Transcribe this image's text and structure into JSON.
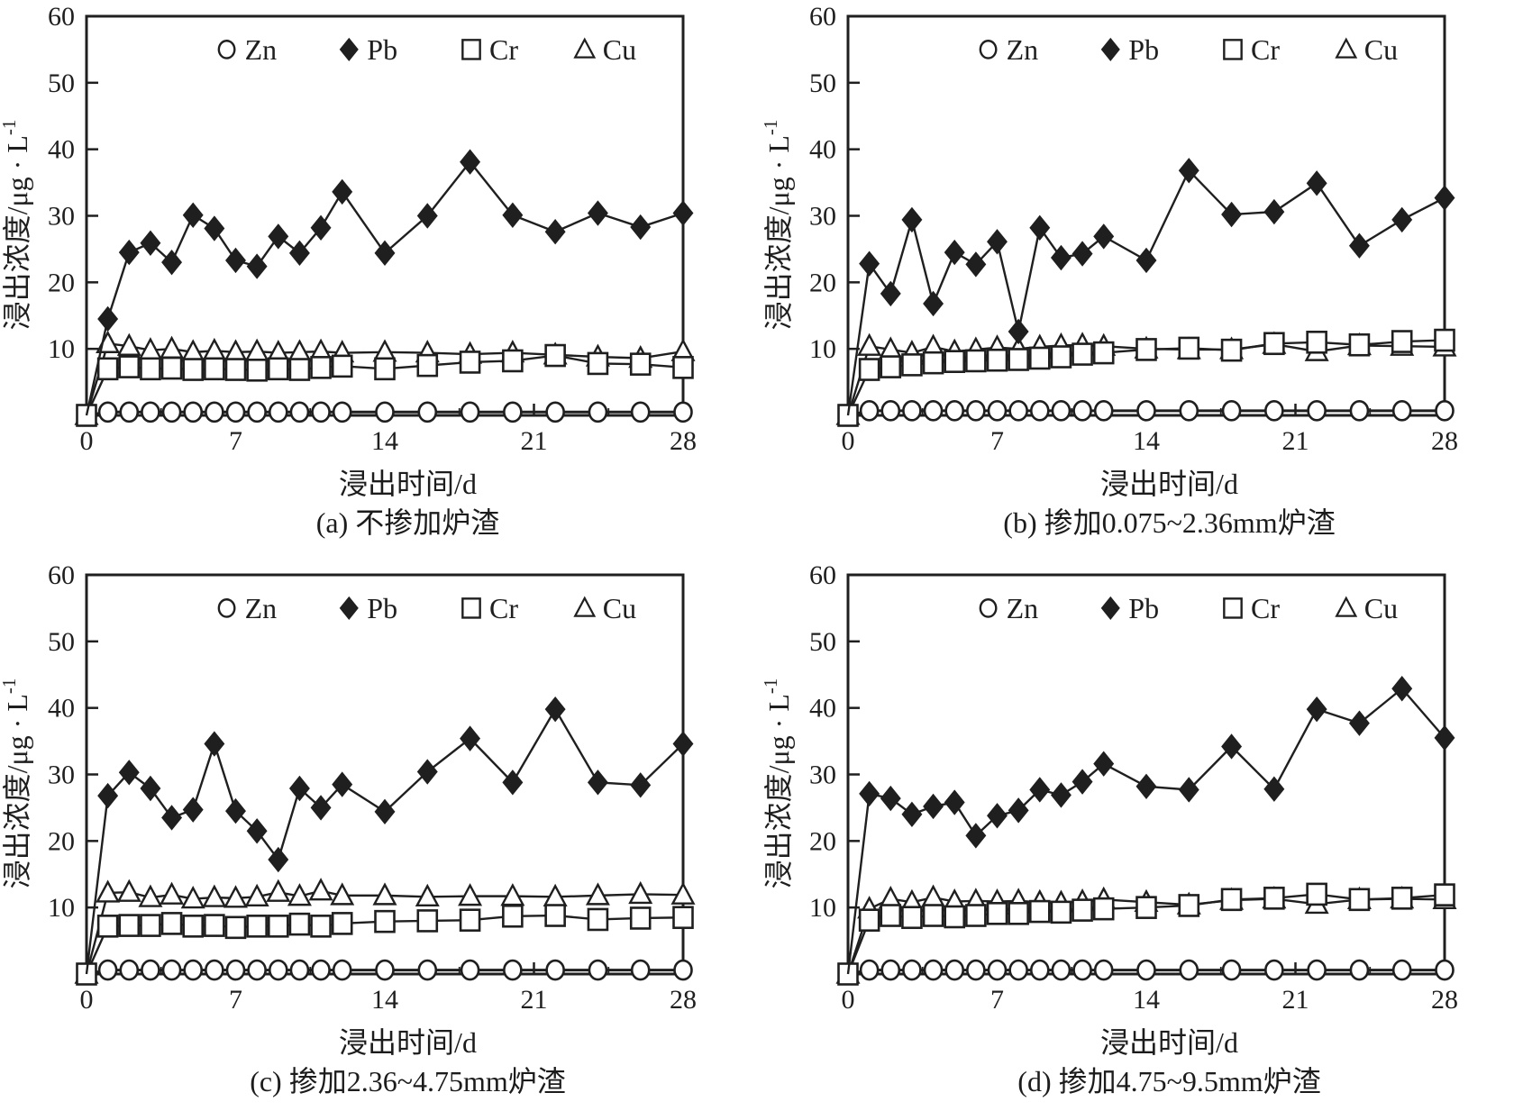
{
  "figure": {
    "legend_labels": [
      "Zn",
      "Pb",
      "Cr",
      "Cu"
    ],
    "ink_color": "#1f1f1f",
    "background_color": "#ffffff"
  },
  "chart_data": [
    {
      "id": "a",
      "type": "line",
      "caption": "(a) 不掺加炉渣",
      "xlabel": "浸出时间/d",
      "ylabel_main": "浸出浓度/μg · L",
      "ylabel_sup": "-1",
      "xlim": [
        0,
        28
      ],
      "ylim": [
        0,
        60
      ],
      "xticks": [
        0,
        7,
        14,
        21,
        28
      ],
      "xminor": [
        3.5,
        10.5,
        17.5,
        24.5
      ],
      "yticks": [
        10,
        20,
        30,
        40,
        50,
        60
      ],
      "grid": false,
      "legend_position": "top-inside",
      "legend": [
        "Zn",
        "Pb",
        "Cr",
        "Cu"
      ],
      "x": [
        0,
        1,
        2,
        3,
        4,
        5,
        6,
        7,
        8,
        9,
        10,
        11,
        12,
        14,
        16,
        18,
        20,
        22,
        24,
        26,
        28
      ],
      "series": [
        {
          "name": "Zn",
          "marker": "circle",
          "filled": false,
          "values": [
            0,
            0.5,
            0.5,
            0.5,
            0.5,
            0.5,
            0.5,
            0.5,
            0.5,
            0.5,
            0.5,
            0.5,
            0.5,
            0.5,
            0.5,
            0.5,
            0.5,
            0.5,
            0.5,
            0.5,
            0.5
          ]
        },
        {
          "name": "Pb",
          "marker": "diamond",
          "filled": true,
          "values": [
            0,
            14.5,
            24.5,
            25.9,
            23.0,
            30.1,
            28.1,
            23.3,
            22.4,
            26.9,
            24.4,
            28.2,
            33.6,
            24.4,
            30.0,
            38.1,
            30.1,
            27.6,
            30.4,
            28.3,
            30.4
          ]
        },
        {
          "name": "Cr",
          "marker": "square",
          "filled": false,
          "values": [
            0,
            7.0,
            7.3,
            7.0,
            7.1,
            6.9,
            7.0,
            6.9,
            6.8,
            7.0,
            6.9,
            7.2,
            7.4,
            7.0,
            7.5,
            8.0,
            8.2,
            9.0,
            7.8,
            7.7,
            7.2
          ]
        },
        {
          "name": "Cu",
          "marker": "triangle",
          "filled": false,
          "values": [
            0,
            10.8,
            10.4,
            9.8,
            10.0,
            9.5,
            9.7,
            9.5,
            9.6,
            9.4,
            9.5,
            9.6,
            9.4,
            9.5,
            9.4,
            9.2,
            9.4,
            9.1,
            8.8,
            8.6,
            9.6
          ]
        }
      ]
    },
    {
      "id": "b",
      "type": "line",
      "caption": "(b) 掺加0.075~2.36mm炉渣",
      "xlabel": "浸出时间/d",
      "ylabel_main": "浸出浓度/μg · L",
      "ylabel_sup": "-1",
      "xlim": [
        0,
        28
      ],
      "ylim": [
        0,
        60
      ],
      "xticks": [
        0,
        7,
        14,
        21,
        28
      ],
      "xminor": [
        3.5,
        10.5,
        17.5,
        24.5
      ],
      "yticks": [
        10,
        20,
        30,
        40,
        50,
        60
      ],
      "grid": false,
      "legend_position": "top-inside",
      "legend": [
        "Zn",
        "Pb",
        "Cr",
        "Cu"
      ],
      "x": [
        0,
        1,
        2,
        3,
        4,
        5,
        6,
        7,
        8,
        9,
        10,
        11,
        12,
        14,
        16,
        18,
        20,
        22,
        24,
        26,
        28
      ],
      "series": [
        {
          "name": "Zn",
          "marker": "circle",
          "filled": false,
          "values": [
            0,
            0.7,
            0.7,
            0.7,
            0.7,
            0.7,
            0.7,
            0.7,
            0.7,
            0.7,
            0.7,
            0.7,
            0.7,
            0.7,
            0.7,
            0.7,
            0.7,
            0.7,
            0.7,
            0.7,
            0.7
          ]
        },
        {
          "name": "Pb",
          "marker": "diamond",
          "filled": true,
          "values": [
            0,
            22.8,
            18.3,
            29.4,
            16.8,
            24.5,
            22.7,
            26.1,
            12.6,
            28.2,
            23.7,
            24.3,
            26.9,
            23.3,
            36.8,
            30.2,
            30.6,
            34.9,
            25.5,
            29.4,
            32.7
          ]
        },
        {
          "name": "Cr",
          "marker": "square",
          "filled": false,
          "values": [
            0,
            6.9,
            7.3,
            7.6,
            7.9,
            8.1,
            8.2,
            8.3,
            8.4,
            8.6,
            8.8,
            9.2,
            9.4,
            9.9,
            10.1,
            9.8,
            10.8,
            11.0,
            10.6,
            11.1,
            11.3
          ]
        },
        {
          "name": "Cu",
          "marker": "triangle",
          "filled": false,
          "values": [
            0,
            10.4,
            9.9,
            9.4,
            10.3,
            9.6,
            9.9,
            10.2,
            10.0,
            10.3,
            10.5,
            10.6,
            10.4,
            10.0,
            9.9,
            9.9,
            10.7,
            9.6,
            10.5,
            10.4,
            10.3
          ]
        }
      ]
    },
    {
      "id": "c",
      "type": "line",
      "caption": "(c) 掺加2.36~4.75mm炉渣",
      "xlabel": "浸出时间/d",
      "ylabel_main": "浸出浓度/μg · L",
      "ylabel_sup": "-1",
      "xlim": [
        0,
        28
      ],
      "ylim": [
        0,
        60
      ],
      "xticks": [
        0,
        7,
        14,
        21,
        28
      ],
      "xminor": [
        3.5,
        10.5,
        17.5,
        24.5
      ],
      "yticks": [
        10,
        20,
        30,
        40,
        50,
        60
      ],
      "grid": false,
      "legend_position": "top-inside",
      "legend": [
        "Zn",
        "Pb",
        "Cr",
        "Cu"
      ],
      "x": [
        0,
        1,
        2,
        3,
        4,
        5,
        6,
        7,
        8,
        9,
        10,
        11,
        12,
        14,
        16,
        18,
        20,
        22,
        24,
        26,
        28
      ],
      "series": [
        {
          "name": "Zn",
          "marker": "circle",
          "filled": false,
          "values": [
            0,
            0.6,
            0.6,
            0.6,
            0.6,
            0.6,
            0.6,
            0.6,
            0.6,
            0.6,
            0.6,
            0.6,
            0.6,
            0.6,
            0.6,
            0.6,
            0.6,
            0.6,
            0.6,
            0.6,
            0.6
          ]
        },
        {
          "name": "Pb",
          "marker": "diamond",
          "filled": true,
          "values": [
            0,
            26.8,
            30.3,
            27.9,
            23.5,
            24.7,
            34.6,
            24.5,
            21.5,
            17.2,
            27.9,
            25.0,
            28.5,
            24.4,
            30.4,
            35.4,
            28.8,
            39.8,
            28.8,
            28.4,
            34.6
          ]
        },
        {
          "name": "Cr",
          "marker": "square",
          "filled": false,
          "values": [
            0,
            7.2,
            7.3,
            7.3,
            7.6,
            7.2,
            7.3,
            7.0,
            7.2,
            7.2,
            7.5,
            7.2,
            7.6,
            7.9,
            8.0,
            8.1,
            8.7,
            8.8,
            8.2,
            8.4,
            8.5
          ]
        },
        {
          "name": "Cu",
          "marker": "triangle",
          "filled": false,
          "values": [
            0,
            12.2,
            12.3,
            11.5,
            11.9,
            11.3,
            11.5,
            11.4,
            11.6,
            12.3,
            11.7,
            12.5,
            11.8,
            11.8,
            11.6,
            11.7,
            11.7,
            11.6,
            11.8,
            12.0,
            11.9
          ]
        }
      ]
    },
    {
      "id": "d",
      "type": "line",
      "caption": "(d) 掺加4.75~9.5mm炉渣",
      "xlabel": "浸出时间/d",
      "ylabel_main": "浸出浓度/μg · L",
      "ylabel_sup": "-1",
      "xlim": [
        0,
        28
      ],
      "ylim": [
        0,
        60
      ],
      "xticks": [
        0,
        7,
        14,
        21,
        28
      ],
      "xminor": [
        3.5,
        10.5,
        17.5,
        24.5
      ],
      "yticks": [
        10,
        20,
        30,
        40,
        50,
        60
      ],
      "grid": false,
      "legend_position": "top-inside",
      "legend": [
        "Zn",
        "Pb",
        "Cr",
        "Cu"
      ],
      "x": [
        0,
        1,
        2,
        3,
        4,
        5,
        6,
        7,
        8,
        9,
        10,
        11,
        12,
        14,
        16,
        18,
        20,
        22,
        24,
        26,
        28
      ],
      "series": [
        {
          "name": "Zn",
          "marker": "circle",
          "filled": false,
          "values": [
            0,
            0.6,
            0.6,
            0.6,
            0.6,
            0.6,
            0.6,
            0.6,
            0.6,
            0.6,
            0.6,
            0.6,
            0.6,
            0.6,
            0.6,
            0.6,
            0.6,
            0.6,
            0.6,
            0.6,
            0.6
          ]
        },
        {
          "name": "Pb",
          "marker": "diamond",
          "filled": true,
          "values": [
            0,
            27.1,
            26.4,
            24.0,
            25.2,
            25.8,
            20.8,
            23.8,
            24.6,
            27.7,
            26.9,
            28.9,
            31.6,
            28.2,
            27.7,
            34.2,
            27.8,
            39.8,
            37.7,
            42.9,
            35.5
          ]
        },
        {
          "name": "Cr",
          "marker": "square",
          "filled": false,
          "values": [
            0,
            8.1,
            8.8,
            8.5,
            8.8,
            8.6,
            8.8,
            9.1,
            9.1,
            9.4,
            9.3,
            9.6,
            9.8,
            10.0,
            10.3,
            11.2,
            11.4,
            12.0,
            11.2,
            11.4,
            11.9
          ]
        },
        {
          "name": "Cu",
          "marker": "triangle",
          "filled": false,
          "values": [
            0,
            9.8,
            11.3,
            10.8,
            11.5,
            10.9,
            11.0,
            10.9,
            11.0,
            10.8,
            10.7,
            10.9,
            11.2,
            10.8,
            10.4,
            11.1,
            11.3,
            10.5,
            11.2,
            11.3,
            11.2
          ]
        }
      ]
    }
  ]
}
